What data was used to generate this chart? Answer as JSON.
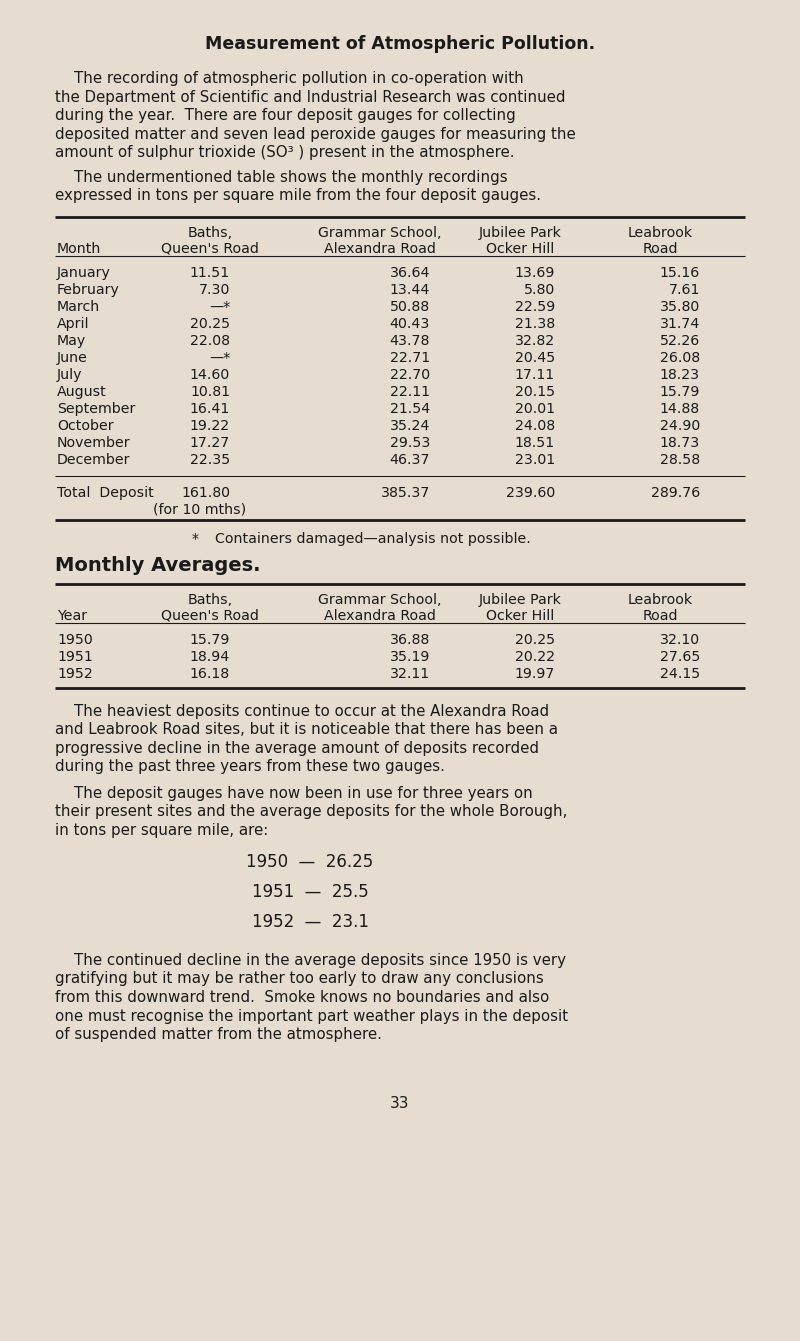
{
  "title": "Measurement of Atmospheric Pollution.",
  "bg_color": "#e6ddd0",
  "text_color": "#1a1a1a",
  "page_number": "33",
  "para1_lines": [
    "    The recording of atmospheric pollution in co-operation with",
    "the Department of Scientific and Industrial Research was continued",
    "during the year.  There are four deposit gauges for collecting",
    "deposited matter and seven lead peroxide gauges for measuring the",
    "amount of sulphur trioxide (SO³ ) present in the atmosphere."
  ],
  "para2_lines": [
    "    The undermentioned table shows the monthly recordings",
    "expressed in tons per square mile from the four deposit gauges."
  ],
  "table1_header_row1": [
    "",
    "Baths,",
    "Grammar School,",
    "Jubilee Park",
    "Leabrook"
  ],
  "table1_header_row2": [
    "Month",
    "Queen's Road",
    "Alexandra Road",
    "Ocker Hill",
    "Road"
  ],
  "table1_data": [
    [
      "January",
      "11.51",
      "36.64",
      "13.69",
      "15.16"
    ],
    [
      "February",
      "7.30",
      "13.44",
      "5.80",
      "7.61"
    ],
    [
      "March",
      "—*",
      "50.88",
      "22.59",
      "35.80"
    ],
    [
      "April",
      "20.25",
      "40.43",
      "21.38",
      "31.74"
    ],
    [
      "May",
      "22.08",
      "43.78",
      "32.82",
      "52.26"
    ],
    [
      "June",
      "—*",
      "22.71",
      "20.45",
      "26.08"
    ],
    [
      "July",
      "14.60",
      "22.70",
      "17.11",
      "18.23"
    ],
    [
      "August",
      "10.81",
      "22.11",
      "20.15",
      "15.79"
    ],
    [
      "September",
      "16.41",
      "21.54",
      "20.01",
      "14.88"
    ],
    [
      "October",
      "19.22",
      "35.24",
      "24.08",
      "24.90"
    ],
    [
      "November",
      "17.27",
      "29.53",
      "18.51",
      "18.73"
    ],
    [
      "December",
      "22.35",
      "46.37",
      "23.01",
      "28.58"
    ]
  ],
  "table1_total_label": "Total  Deposit",
  "table1_total_sub": "(for 10 mths)",
  "table1_totals": [
    "161.80",
    "385.37",
    "239.60",
    "289.76"
  ],
  "footnote_star": "*",
  "footnote_text": "Containers damaged—analysis not possible.",
  "section2_title": "Monthly Averages.",
  "table2_header_row1": [
    "",
    "Baths,",
    "Grammar School,",
    "Jubilee Park",
    "Leabrook"
  ],
  "table2_header_row2": [
    "Year",
    "Queen's Road",
    "Alexandra Road",
    "Ocker Hill",
    "Road"
  ],
  "table2_data": [
    [
      "1950",
      "15.79",
      "36.88",
      "20.25",
      "32.10"
    ],
    [
      "1951",
      "18.94",
      "35.19",
      "20.22",
      "27.65"
    ],
    [
      "1952",
      "16.18",
      "32.11",
      "19.97",
      "24.15"
    ]
  ],
  "para3_lines": [
    "    The heaviest deposits continue to occur at the Alexandra Road",
    "and Leabrook Road sites, but it is noticeable that there has been a",
    "progressive decline in the average amount of deposits recorded",
    "during the past three years from these two gauges."
  ],
  "para4_lines": [
    "    The deposit gauges have now been in use for three years on",
    "their present sites and the average deposits for the whole Borough,",
    "in tons per square mile, are:"
  ],
  "borough_averages": [
    "1950  —  26.25",
    "1951  —  25.5",
    "1952  —  23.1"
  ],
  "para5_lines": [
    "    The continued decline in the average deposits since 1950 is very",
    "gratifying but it may be rather too early to draw any conclusions",
    "from this downward trend.  Smoke knows no boundaries and also",
    "one must recognise the important part weather plays in the deposit",
    "of suspended matter from the atmosphere."
  ]
}
